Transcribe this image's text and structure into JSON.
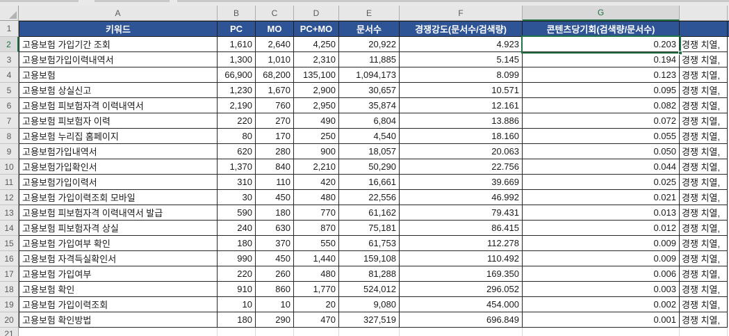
{
  "sheet": {
    "column_letters": [
      "A",
      "B",
      "C",
      "D",
      "E",
      "F",
      "G"
    ],
    "header_row_number": "1",
    "partial_row_number": "21",
    "selection": {
      "active_cell": "G2",
      "row": "2",
      "column": "G"
    }
  },
  "table": {
    "headers": {
      "keyword": "키워드",
      "pc": "PC",
      "mo": "MO",
      "pcmo": "PC+MO",
      "docs": "문서수",
      "competition": "경쟁강도(문서수/검색량)",
      "opportunity": "콘텐츠당기회(검색량/문서수)"
    },
    "rows": [
      {
        "n": "2",
        "keyword": "고용보험 가입기간 조회",
        "pc": "1,610",
        "mo": "2,640",
        "pcmo": "4,250",
        "docs": "20,922",
        "competition": "4.923",
        "opportunity": "0.203",
        "overflow": "경쟁 치열,"
      },
      {
        "n": "3",
        "keyword": "고용보험가입이력내역서",
        "pc": "1,300",
        "mo": "1,010",
        "pcmo": "2,310",
        "docs": "11,885",
        "competition": "5.145",
        "opportunity": "0.194",
        "overflow": "경쟁 치열,"
      },
      {
        "n": "4",
        "keyword": "고용보험",
        "pc": "66,900",
        "mo": "68,200",
        "pcmo": "135,100",
        "docs": "1,094,173",
        "competition": "8.099",
        "opportunity": "0.123",
        "overflow": "경쟁 치열,"
      },
      {
        "n": "5",
        "keyword": "고용보험 상실신고",
        "pc": "1,230",
        "mo": "1,670",
        "pcmo": "2,900",
        "docs": "30,657",
        "competition": "10.571",
        "opportunity": "0.095",
        "overflow": "경쟁 치열,"
      },
      {
        "n": "6",
        "keyword": "고용보험 피보험자격 이력내역서",
        "pc": "2,190",
        "mo": "760",
        "pcmo": "2,950",
        "docs": "35,874",
        "competition": "12.161",
        "opportunity": "0.082",
        "overflow": "경쟁 치열,"
      },
      {
        "n": "7",
        "keyword": "고용보험 피보험자 이력",
        "pc": "220",
        "mo": "270",
        "pcmo": "490",
        "docs": "6,804",
        "competition": "13.886",
        "opportunity": "0.072",
        "overflow": "경쟁 치열,"
      },
      {
        "n": "8",
        "keyword": "고용보험 누리집 홈페이지",
        "pc": "80",
        "mo": "170",
        "pcmo": "250",
        "docs": "4,540",
        "competition": "18.160",
        "opportunity": "0.055",
        "overflow": "경쟁 치열,"
      },
      {
        "n": "9",
        "keyword": "고용보험가입내역서",
        "pc": "620",
        "mo": "280",
        "pcmo": "900",
        "docs": "18,057",
        "competition": "20.063",
        "opportunity": "0.050",
        "overflow": "경쟁 치열,"
      },
      {
        "n": "10",
        "keyword": "고용보험가입확인서",
        "pc": "1,370",
        "mo": "840",
        "pcmo": "2,210",
        "docs": "50,290",
        "competition": "22.756",
        "opportunity": "0.044",
        "overflow": "경쟁 치열,"
      },
      {
        "n": "11",
        "keyword": "고용보험가입이력서",
        "pc": "310",
        "mo": "110",
        "pcmo": "420",
        "docs": "16,661",
        "competition": "39.669",
        "opportunity": "0.025",
        "overflow": "경쟁 치열,"
      },
      {
        "n": "12",
        "keyword": "고용보험 가입이력조회 모바일",
        "pc": "30",
        "mo": "450",
        "pcmo": "480",
        "docs": "22,556",
        "competition": "46.992",
        "opportunity": "0.021",
        "overflow": "경쟁 치열,"
      },
      {
        "n": "13",
        "keyword": "고용보험 피보험자격 이력내역서 발급",
        "pc": "590",
        "mo": "180",
        "pcmo": "770",
        "docs": "61,162",
        "competition": "79.431",
        "opportunity": "0.013",
        "overflow": "경쟁 치열,"
      },
      {
        "n": "14",
        "keyword": "고용보험 피보험자격 상실",
        "pc": "240",
        "mo": "630",
        "pcmo": "870",
        "docs": "75,181",
        "competition": "86.415",
        "opportunity": "0.012",
        "overflow": "경쟁 치열,"
      },
      {
        "n": "15",
        "keyword": "고용보험 가입여부 확인",
        "pc": "180",
        "mo": "370",
        "pcmo": "550",
        "docs": "61,753",
        "competition": "112.278",
        "opportunity": "0.009",
        "overflow": "경쟁 치열,"
      },
      {
        "n": "16",
        "keyword": "고용보험 자격득실확인서",
        "pc": "990",
        "mo": "450",
        "pcmo": "1,440",
        "docs": "159,108",
        "competition": "110.492",
        "opportunity": "0.009",
        "overflow": "경쟁 치열,"
      },
      {
        "n": "17",
        "keyword": "고용보험 가입여부",
        "pc": "220",
        "mo": "260",
        "pcmo": "480",
        "docs": "81,288",
        "competition": "169.350",
        "opportunity": "0.006",
        "overflow": "경쟁 치열,"
      },
      {
        "n": "18",
        "keyword": "고용보험 확인",
        "pc": "910",
        "mo": "860",
        "pcmo": "1,770",
        "docs": "524,012",
        "competition": "296.052",
        "opportunity": "0.003",
        "overflow": "경쟁 치열,"
      },
      {
        "n": "19",
        "keyword": "고용보험 가입이력조회",
        "pc": "10",
        "mo": "10",
        "pcmo": "20",
        "docs": "9,080",
        "competition": "454.000",
        "opportunity": "0.002",
        "overflow": "경쟁 치열,"
      },
      {
        "n": "20",
        "keyword": "고용보험 확인방법",
        "pc": "180",
        "mo": "290",
        "pcmo": "470",
        "docs": "327,519",
        "competition": "696.849",
        "opportunity": "0.001",
        "overflow": "경쟁 치열,"
      }
    ]
  },
  "colors": {
    "header_bg": "#2F5496",
    "header_text": "#FFFFFF",
    "selection_green": "#217346",
    "grid_border": "#262626",
    "panel_gray": "#E7E7E7"
  }
}
